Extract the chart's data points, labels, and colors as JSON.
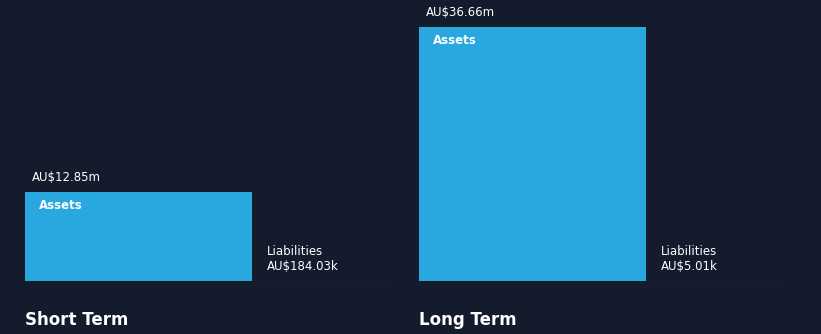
{
  "background_color": "#141b2d",
  "text_color": "#ffffff",
  "bar_color": "#29a8e0",
  "baseline_color": "#555577",
  "short_term": {
    "assets_value": 12.85,
    "assets_label": "AU$12.85m",
    "assets_text": "Assets",
    "liabilities_label": "AU$184.03k",
    "liabilities_text": "Liabilities",
    "section_label": "Short Term"
  },
  "long_term": {
    "assets_value": 36.66,
    "assets_label": "AU$36.66m",
    "assets_text": "Assets",
    "liabilities_label": "AU$5.01k",
    "liabilities_text": "Liabilities",
    "section_label": "Long Term"
  },
  "max_value": 36.66,
  "value_fontsize": 8.5,
  "assets_text_fontsize": 8.5,
  "liab_fontsize": 8.5,
  "section_fontsize": 12,
  "font_family": "DejaVu Sans"
}
